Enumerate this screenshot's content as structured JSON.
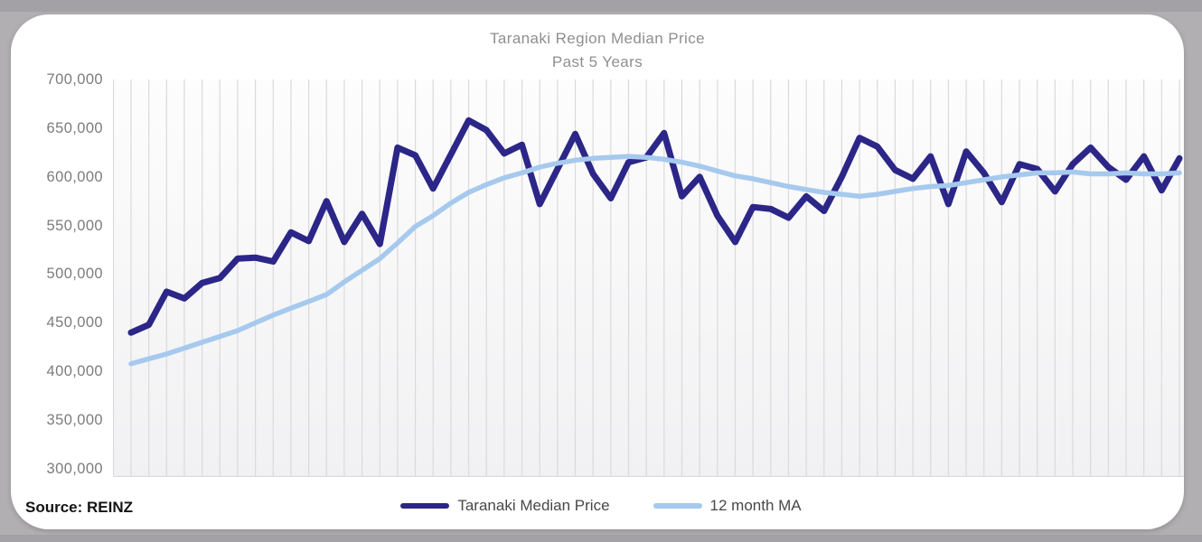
{
  "title": {
    "line1": "Taranaki Region Median Price",
    "line2": "Past 5 Years"
  },
  "source_label": "Source: REINZ",
  "legend": [
    {
      "label": "Taranaki Median Price",
      "color": "#2b2687"
    },
    {
      "label": "12 month MA",
      "color": "#a6c9ee"
    }
  ],
  "y_axis": {
    "tick_labels": [
      "700,000",
      "650,000",
      "600,000",
      "550,000",
      "500,000",
      "450,000",
      "400,000",
      "350,000",
      "300,000"
    ]
  },
  "colors": {
    "median_line": "#2b2687",
    "ma_line": "#a6c9ee",
    "grid": "#dadadc",
    "plot_bg_top": "#fdfdfd",
    "plot_bg_bottom": "#f1f1f3"
  },
  "chart_data": {
    "type": "line",
    "title": "Taranaki Region Median Price",
    "subtitle": "Past 5 Years",
    "x_description": "60 monthly observations over the past 5 years; no x-axis tick labels shown",
    "ylim": [
      300000,
      700000
    ],
    "y_tick_interval": 50000,
    "grid": "vertical-only",
    "legend_position": "bottom-center",
    "source": "Source: REINZ",
    "series": [
      {
        "name": "Taranaki Median Price",
        "color": "#2b2687",
        "values_nzd": [
          440000,
          448000,
          482000,
          475000,
          491000,
          496000,
          516000,
          517000,
          513000,
          543000,
          534000,
          575000,
          533000,
          562000,
          531000,
          630000,
          622000,
          588000,
          623000,
          658000,
          648000,
          624000,
          633000,
          572000,
          608000,
          644000,
          603000,
          578000,
          615000,
          620000,
          645000,
          580000,
          600000,
          560000,
          533000,
          569000,
          567000,
          558000,
          580000,
          565000,
          600000,
          640000,
          631000,
          607000,
          598000,
          621000,
          572000,
          626000,
          604000,
          574000,
          613000,
          608000,
          585000,
          613000,
          630000,
          610000,
          597000,
          621000,
          586000,
          619000
        ]
      },
      {
        "name": "12 month MA",
        "color": "#a6c9ee",
        "values_nzd": [
          408000,
          413000,
          418000,
          424000,
          430000,
          436000,
          442000,
          450000,
          458000,
          465000,
          472000,
          479000,
          492000,
          504000,
          516000,
          532000,
          549000,
          560000,
          573000,
          584000,
          592000,
          599000,
          604000,
          610000,
          614000,
          617000,
          619000,
          620000,
          621000,
          620000,
          618000,
          615000,
          611000,
          606000,
          601000,
          598000,
          594000,
          590000,
          587000,
          584000,
          582000,
          580000,
          582000,
          585000,
          588000,
          590000,
          591000,
          594000,
          597000,
          600000,
          602000,
          604000,
          604000,
          605000,
          603000,
          603000,
          604000,
          603000,
          603000,
          604000
        ]
      }
    ]
  }
}
